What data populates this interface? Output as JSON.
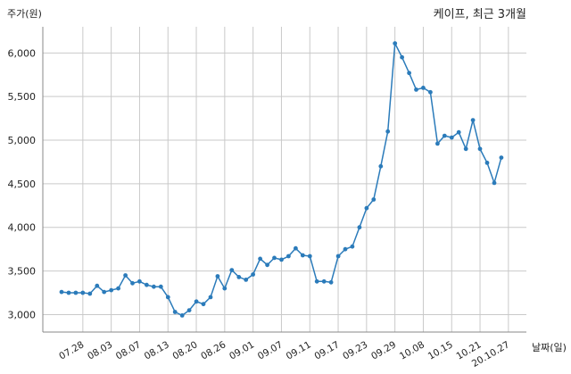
{
  "chart_data": {
    "type": "line",
    "title": "케이프, 최근 3개월",
    "ylabel": "주가(원)",
    "xlabel": "날짜(일)",
    "ylim": [
      2800,
      6300
    ],
    "grid": true,
    "yticks": [
      "3,000",
      "3,500",
      "4,000",
      "4,500",
      "5,000",
      "5,500",
      "6,000"
    ],
    "ytick_values": [
      3000,
      3500,
      4000,
      4500,
      5000,
      5500,
      6000
    ],
    "xticks": [
      "07.28",
      "08.03",
      "08.07",
      "08.13",
      "08.20",
      "08.26",
      "09.01",
      "09.07",
      "09.11",
      "09.17",
      "09.23",
      "09.29",
      "10.08",
      "10.15",
      "10.21",
      "20.10.27"
    ],
    "xtick_index": [
      3,
      7,
      11,
      15,
      19,
      23,
      27,
      31,
      35,
      39,
      43,
      47,
      51,
      55,
      59,
      63
    ],
    "series": [
      {
        "color": "#2b7bba",
        "values": [
          3260,
          3250,
          3250,
          3250,
          3240,
          3330,
          3260,
          3280,
          3300,
          3450,
          3360,
          3380,
          3340,
          3320,
          3320,
          3200,
          3030,
          2990,
          3050,
          3150,
          3120,
          3200,
          3440,
          3300,
          3510,
          3430,
          3400,
          3460,
          3640,
          3570,
          3650,
          3630,
          3670,
          3760,
          3680,
          3670,
          3380,
          3380,
          3370,
          3670,
          3750,
          3780,
          4000,
          4220,
          4320,
          4700,
          5100,
          6110,
          5950,
          5770,
          5580,
          5600,
          5550,
          4960,
          5050,
          5030,
          5090,
          4900,
          5230,
          4900,
          4740,
          4510,
          4800
        ]
      }
    ]
  }
}
